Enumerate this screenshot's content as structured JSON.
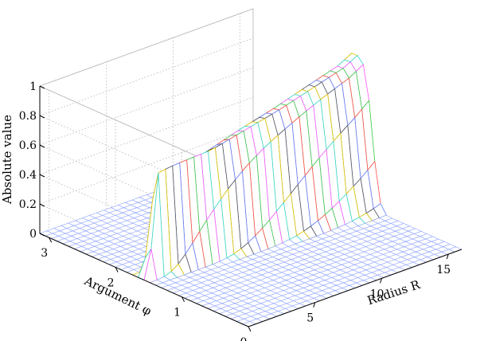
{
  "chart_data": {
    "type": "surface",
    "title": "",
    "xlabel": "Radius R",
    "ylabel": "Argument φ",
    "zlabel": "Absolute value",
    "xlim": [
      0,
      16
    ],
    "ylim": [
      0,
      3.14
    ],
    "zlim": [
      0,
      1
    ],
    "xticks": [
      "5",
      "10",
      "15"
    ],
    "yticks": [
      "0",
      "1",
      "2",
      "3"
    ],
    "zticks": [
      "0",
      "0.2",
      "0.4",
      "0.6",
      "0.8",
      "1"
    ],
    "grid": true,
    "surface": {
      "description": "Absolute value over Radius R (0-16) and Argument φ (0-π); a ridge centred near φ ≈ 1.6 rising with R to about 1 at R = 16, near zero elsewhere.",
      "ridge_center_phi": 1.6,
      "samples": [
        {
          "R": 0,
          "phi_peak": 1.6,
          "peak_value": 0.0
        },
        {
          "R": 1,
          "phi_peak": 1.6,
          "peak_value": 0.72
        },
        {
          "R": 5,
          "phi_peak": 1.6,
          "peak_value": 0.72
        },
        {
          "R": 10,
          "phi_peak": 1.6,
          "peak_value": 0.82
        },
        {
          "R": 15,
          "phi_peak": 1.6,
          "peak_value": 0.95
        },
        {
          "R": 16,
          "phi_peak": 1.6,
          "peak_value": 1.0
        }
      ]
    },
    "colors": {
      "mesh": [
        "#5b7fff",
        "#ff4a4a",
        "#33cc44",
        "#ff55ff",
        "#33d6d6",
        "#e0c800",
        "#555555"
      ],
      "floor": "#8fa3ff"
    }
  }
}
